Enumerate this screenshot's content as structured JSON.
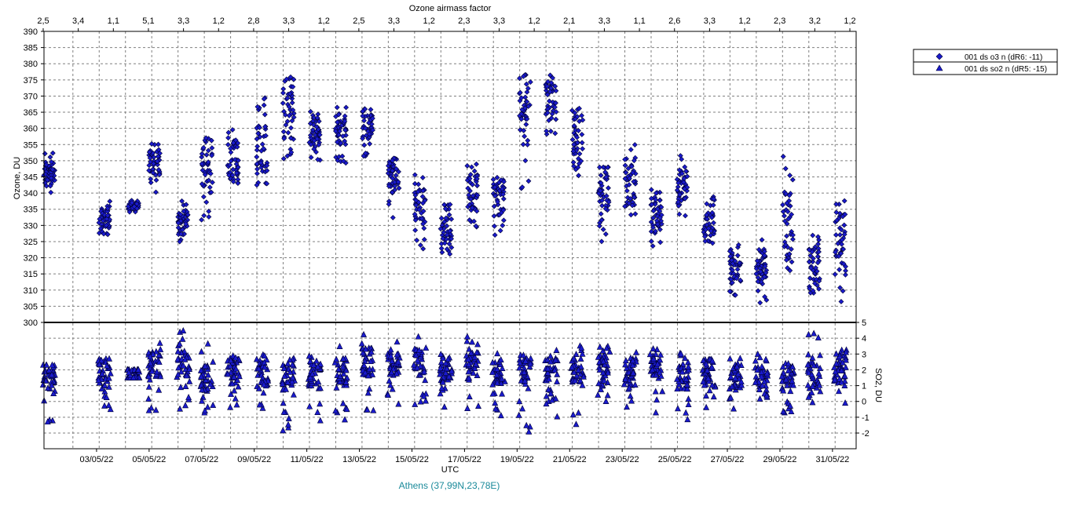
{
  "chart_data": {
    "type": "scatter",
    "top_axis_label": "Ozone airmass factor",
    "top_ticks": [
      "2,5",
      "3,4",
      "1,1",
      "5,1",
      "3,3",
      "1,2",
      "2,8",
      "3,3",
      "1,2",
      "2,5",
      "3,3",
      "1,2",
      "2,3",
      "3,3",
      "1,2",
      "2,1",
      "3,3",
      "1,1",
      "2,6",
      "3,3",
      "1,2",
      "2,3",
      "3,2",
      "1,2"
    ],
    "x_label": "UTC",
    "x_tick_labels": [
      "03/05/22",
      "05/05/22",
      "07/05/22",
      "09/05/22",
      "11/05/22",
      "13/05/22",
      "15/05/22",
      "17/05/22",
      "19/05/22",
      "21/05/22",
      "23/05/22",
      "25/05/22",
      "27/05/22",
      "29/05/22",
      "31/05/22"
    ],
    "x_range_days": [
      1.0,
      31.9
    ],
    "ozone_axis": {
      "label": "Ozone, DU",
      "range": [
        300,
        390
      ],
      "ticks": [
        300,
        305,
        310,
        315,
        320,
        325,
        330,
        335,
        340,
        345,
        350,
        355,
        360,
        365,
        370,
        375,
        380,
        385,
        390
      ]
    },
    "so2_axis": {
      "label": "SO2, DU",
      "range": [
        -3,
        5
      ],
      "ticks": [
        -2,
        -1,
        0,
        1,
        2,
        3,
        4,
        5
      ]
    },
    "station": "Athens (37,99N,23,78E)",
    "legend": [
      {
        "marker": "diamond",
        "name": "001 ds o3  n (dR6: -11)"
      },
      {
        "marker": "triangle",
        "name": "001 ds so2 n (dR5: -15)"
      }
    ],
    "colors": {
      "marker_fill": "#1a1acc",
      "marker_edge": "#000033",
      "station_text": "#1a8a9a"
    },
    "grid": true,
    "ozone_daily": [
      {
        "day": 1.2,
        "lo": 340,
        "hi": 354,
        "c": 346
      },
      {
        "day": 3.3,
        "lo": 326,
        "hi": 338,
        "c": 332
      },
      {
        "day": 4.4,
        "lo": 334,
        "hi": 338,
        "c": 336
      },
      {
        "day": 5.2,
        "lo": 337,
        "hi": 357,
        "c": 348
      },
      {
        "day": 6.3,
        "lo": 324,
        "hi": 338,
        "c": 331
      },
      {
        "day": 7.2,
        "lo": 331,
        "hi": 358,
        "c": 347
      },
      {
        "day": 8.2,
        "lo": 339,
        "hi": 364,
        "c": 350
      },
      {
        "day": 9.3,
        "lo": 342,
        "hi": 371,
        "c": 354
      },
      {
        "day": 10.3,
        "lo": 349,
        "hi": 376,
        "c": 368
      },
      {
        "day": 11.3,
        "lo": 350,
        "hi": 366,
        "c": 360
      },
      {
        "day": 12.3,
        "lo": 349,
        "hi": 367,
        "c": 360
      },
      {
        "day": 13.3,
        "lo": 350,
        "hi": 368,
        "c": 360
      },
      {
        "day": 14.3,
        "lo": 330,
        "hi": 351,
        "c": 345
      },
      {
        "day": 15.3,
        "lo": 322,
        "hi": 346,
        "c": 335
      },
      {
        "day": 16.3,
        "lo": 321,
        "hi": 337,
        "c": 328
      },
      {
        "day": 17.3,
        "lo": 329,
        "hi": 350,
        "c": 340
      },
      {
        "day": 18.3,
        "lo": 326,
        "hi": 346,
        "c": 339
      },
      {
        "day": 19.3,
        "lo": 337,
        "hi": 382,
        "c": 365
      },
      {
        "day": 20.3,
        "lo": 358,
        "hi": 377,
        "c": 369
      },
      {
        "day": 21.3,
        "lo": 344,
        "hi": 367,
        "c": 358
      },
      {
        "day": 22.3,
        "lo": 323,
        "hi": 348,
        "c": 342
      },
      {
        "day": 23.3,
        "lo": 331,
        "hi": 355,
        "c": 342
      },
      {
        "day": 24.3,
        "lo": 322,
        "hi": 342,
        "c": 333
      },
      {
        "day": 25.3,
        "lo": 332,
        "hi": 352,
        "c": 343
      },
      {
        "day": 26.3,
        "lo": 324,
        "hi": 339,
        "c": 331
      },
      {
        "day": 27.3,
        "lo": 306,
        "hi": 324,
        "c": 316
      },
      {
        "day": 28.3,
        "lo": 306,
        "hi": 326,
        "c": 318
      },
      {
        "day": 29.3,
        "lo": 308,
        "hi": 352,
        "c": 330
      },
      {
        "day": 30.3,
        "lo": 309,
        "hi": 328,
        "c": 318
      },
      {
        "day": 31.3,
        "lo": 305,
        "hi": 338,
        "c": 325
      }
    ],
    "so2_daily": [
      {
        "day": 1.2,
        "lo": -1.4,
        "hi": 2.3,
        "c": 1.5
      },
      {
        "day": 3.3,
        "lo": -0.7,
        "hi": 3.0,
        "c": 1.8
      },
      {
        "day": 4.4,
        "lo": 1.5,
        "hi": 2.0,
        "c": 1.7
      },
      {
        "day": 5.2,
        "lo": -0.6,
        "hi": 4.1,
        "c": 2.2
      },
      {
        "day": 6.3,
        "lo": -0.5,
        "hi": 4.6,
        "c": 2.3
      },
      {
        "day": 7.2,
        "lo": -0.9,
        "hi": 3.8,
        "c": 1.6
      },
      {
        "day": 8.2,
        "lo": -0.4,
        "hi": 3.1,
        "c": 2.0
      },
      {
        "day": 9.3,
        "lo": -1.1,
        "hi": 3.0,
        "c": 1.7
      },
      {
        "day": 10.3,
        "lo": -2.1,
        "hi": 2.8,
        "c": 1.6
      },
      {
        "day": 11.3,
        "lo": -1.6,
        "hi": 3.1,
        "c": 1.7
      },
      {
        "day": 12.3,
        "lo": -1.3,
        "hi": 3.5,
        "c": 1.9
      },
      {
        "day": 13.3,
        "lo": -1.3,
        "hi": 4.3,
        "c": 2.5
      },
      {
        "day": 14.3,
        "lo": -0.4,
        "hi": 3.8,
        "c": 2.3
      },
      {
        "day": 15.3,
        "lo": -0.3,
        "hi": 4.2,
        "c": 2.5
      },
      {
        "day": 16.3,
        "lo": -0.5,
        "hi": 3.3,
        "c": 2.1
      },
      {
        "day": 17.3,
        "lo": -0.5,
        "hi": 4.6,
        "c": 2.3
      },
      {
        "day": 18.3,
        "lo": -1.1,
        "hi": 3.2,
        "c": 1.8
      },
      {
        "day": 19.3,
        "lo": -2.2,
        "hi": 3.0,
        "c": 1.9
      },
      {
        "day": 20.3,
        "lo": -1.1,
        "hi": 3.4,
        "c": 2.0
      },
      {
        "day": 21.3,
        "lo": -1.8,
        "hi": 3.8,
        "c": 2.1
      },
      {
        "day": 22.3,
        "lo": -0.5,
        "hi": 3.8,
        "c": 2.3
      },
      {
        "day": 23.3,
        "lo": -0.5,
        "hi": 3.1,
        "c": 1.9
      },
      {
        "day": 24.3,
        "lo": -0.8,
        "hi": 3.5,
        "c": 2.1
      },
      {
        "day": 25.3,
        "lo": -1.4,
        "hi": 3.1,
        "c": 1.6
      },
      {
        "day": 26.3,
        "lo": -0.4,
        "hi": 2.9,
        "c": 1.8
      },
      {
        "day": 27.3,
        "lo": -0.5,
        "hi": 2.8,
        "c": 1.6
      },
      {
        "day": 28.3,
        "lo": -0.5,
        "hi": 3.1,
        "c": 1.7
      },
      {
        "day": 29.3,
        "lo": -1.1,
        "hi": 2.4,
        "c": 1.5
      },
      {
        "day": 30.3,
        "lo": -0.7,
        "hi": 4.3,
        "c": 1.7
      },
      {
        "day": 31.3,
        "lo": -0.3,
        "hi": 4.0,
        "c": 2.0
      }
    ]
  }
}
